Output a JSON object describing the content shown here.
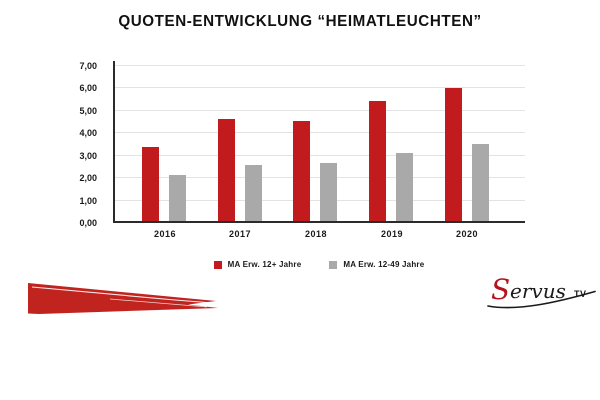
{
  "title": "QUOTEN-ENTWICKLUNG “HEIMATLEUCHTEN”",
  "chart_data": {
    "type": "bar",
    "categories": [
      "2016",
      "2017",
      "2018",
      "2019",
      "2020"
    ],
    "series": [
      {
        "key": "ma-erw-12plus",
        "name": "MA Erw. 12+ Jahre",
        "color": "#c11b1e",
        "values": [
          3.3,
          4.55,
          4.45,
          5.35,
          5.95
        ]
      },
      {
        "key": "ma-erw-12-49",
        "name": "MA Erw. 12-49 Jahre",
        "color": "#a9a9a9",
        "values": [
          2.05,
          2.5,
          2.6,
          3.05,
          3.45
        ]
      }
    ],
    "ylim": [
      0,
      7
    ],
    "ytick_labels": [
      "0,00",
      "1,00",
      "2,00",
      "3,00",
      "4,00",
      "5,00",
      "6,00",
      "7,00"
    ],
    "grid": true,
    "legend_position": "bottom"
  },
  "logo": {
    "script_text": "Servus",
    "suffix_text": "TV"
  },
  "colors": {
    "background": "#ffffff",
    "brand_red": "#c11b1e",
    "bar_gray": "#a9a9a9",
    "gridline": "#e3e3e3",
    "axis": "#2b2b2b",
    "text": "#1a1a1a"
  }
}
